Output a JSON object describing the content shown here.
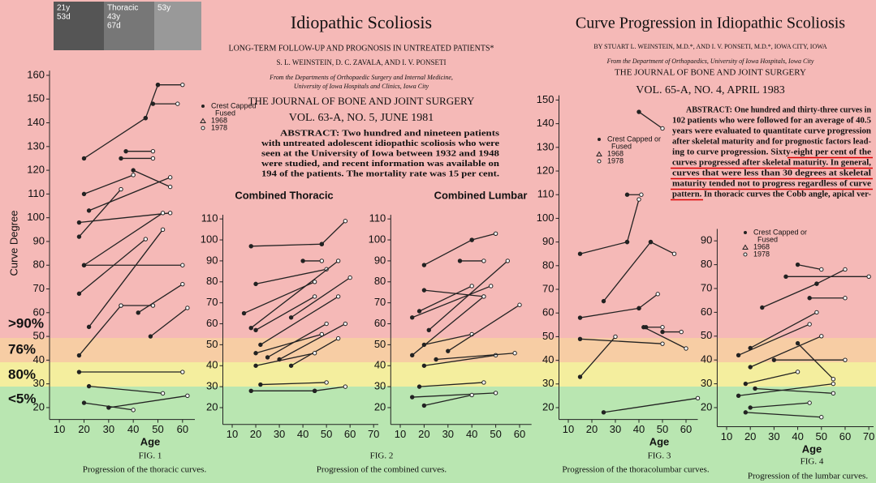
{
  "photos": [
    "21y",
    "53d",
    "Thoracic",
    "43y",
    "67d",
    "53y"
  ],
  "bands": [
    ">90%",
    "76%",
    "80%",
    "<5%"
  ],
  "article_1": {
    "title": "Idiopathic Scoliosis",
    "subtitle": "LONG-TERM FOLLOW-UP AND PROGNOSIS IN UNTREATED PATIENTS*",
    "authors": "S. L. WEINSTEIN, D. C. ZAVALA, AND I. V. PONSETI",
    "affiliation": [
      "From the Departments of Orthopaedic Surgery and Internal Medicine,",
      "University of Iowa Hospitals and Clinics, Iowa City"
    ],
    "journal": "THE JOURNAL OF BONE AND JOINT SURGERY",
    "volume": "VOL. 63-A, NO. 5, JUNE 1981",
    "abstract": [
      "ABSTRACT: Two hundred and nineteen patients",
      "with untreated adolescent idiopathic scoliosis who were",
      "seen at the University of Iowa between 1932 and 1948",
      "were studied, and recent information was available on",
      "194 of the patients. The mortality rate was 15 per cent."
    ]
  },
  "article_2": {
    "title": "Curve Progression in Idiopathic Scoliosis",
    "authors": "BY STUART L. WEINSTEIN, M.D.*, AND I. V. PONSETI, M.D.*, IOWA CITY, IOWA",
    "affiliation": "From the Department of Orthopaedics, University of Iowa Hospitals, Iowa City",
    "journal": "THE JOURNAL OF BONE AND JOINT SURGERY",
    "volume": "VOL. 65-A, NO. 4, APRIL 1983",
    "abstract": [
      "ABSTRACT: One hundred and thirty-three curves in",
      "102 patients who were followed for an average of 40.5",
      "years were evaluated to quantitate curve progression",
      "after skeletal maturity and for prognostic factors lead-",
      "ing to curve progression. Sixty-eight per cent of the",
      "curves progressed after skeletal maturity. In general,",
      "curves that were less than 30 degrees at skeletal",
      "maturity tended not to progress regardless of curve",
      "pattern. In thoracic curves the Cobb angle, apical ver-"
    ]
  },
  "chart_data": [
    {
      "type": "line",
      "ylabel": "Curve Degree",
      "xlabel": "Age",
      "figure": "FIG. 1",
      "caption": "Progression of the thoracic curves.",
      "legend": [
        "Crest Capped",
        "Fused",
        "1968",
        "1978"
      ],
      "xlim": [
        5,
        65
      ],
      "ylim": [
        15,
        162
      ],
      "xticks": [
        10,
        20,
        30,
        40,
        50,
        60
      ],
      "yticks": [
        20,
        30,
        40,
        50,
        60,
        70,
        80,
        90,
        100,
        110,
        120,
        130,
        140,
        150,
        160
      ],
      "segments": [
        {
          "x": [
            20,
            45
          ],
          "values": [
            125,
            142
          ]
        },
        {
          "x": [
            45,
            50
          ],
          "values": [
            142,
            156
          ]
        },
        {
          "x": [
            50,
            60
          ],
          "values": [
            156,
            156
          ]
        },
        {
          "x": [
            48,
            58
          ],
          "values": [
            148,
            148
          ]
        },
        {
          "x": [
            37,
            48
          ],
          "values": [
            128,
            128
          ]
        },
        {
          "x": [
            35,
            48
          ],
          "values": [
            125,
            125
          ]
        },
        {
          "x": [
            20,
            40
          ],
          "values": [
            110,
            118
          ]
        },
        {
          "x": [
            22,
            55
          ],
          "values": [
            103,
            117
          ]
        },
        {
          "x": [
            18,
            55
          ],
          "values": [
            98,
            102
          ]
        },
        {
          "x": [
            20,
            52
          ],
          "values": [
            80,
            102
          ]
        },
        {
          "x": [
            18,
            45
          ],
          "values": [
            68,
            91
          ]
        },
        {
          "x": [
            22,
            52
          ],
          "values": [
            54,
            95
          ]
        },
        {
          "x": [
            20,
            60
          ],
          "values": [
            80,
            80
          ]
        },
        {
          "x": [
            35,
            48
          ],
          "values": [
            63,
            63
          ]
        },
        {
          "x": [
            42,
            60
          ],
          "values": [
            60,
            72
          ]
        },
        {
          "x": [
            47,
            62
          ],
          "values": [
            50,
            62
          ]
        },
        {
          "x": [
            18,
            35
          ],
          "values": [
            42,
            63
          ]
        },
        {
          "x": [
            18,
            60
          ],
          "values": [
            35,
            35
          ]
        },
        {
          "x": [
            22,
            52
          ],
          "values": [
            29,
            26
          ]
        },
        {
          "x": [
            20,
            40
          ],
          "values": [
            22,
            19
          ]
        },
        {
          "x": [
            30,
            62
          ],
          "values": [
            20,
            25
          ]
        },
        {
          "x": [
            18,
            35
          ],
          "values": [
            92,
            112
          ]
        },
        {
          "x": [
            40,
            55
          ],
          "values": [
            120,
            113
          ]
        }
      ]
    },
    {
      "type": "line",
      "title": "Combined Thoracic",
      "figure": "FIG. 2",
      "caption": "Progression of the combined curves.",
      "xlim": [
        5,
        72
      ],
      "ylim": [
        12,
        112
      ],
      "xticks": [
        10,
        20,
        30,
        40,
        50,
        60,
        70
      ],
      "yticks": [
        20,
        30,
        40,
        50,
        60,
        70,
        80,
        90,
        100,
        110
      ],
      "segments": [
        {
          "x": [
            18,
            48
          ],
          "values": [
            97,
            98
          ]
        },
        {
          "x": [
            48,
            58
          ],
          "values": [
            98,
            109
          ]
        },
        {
          "x": [
            20,
            50
          ],
          "values": [
            79,
            86
          ]
        },
        {
          "x": [
            15,
            45
          ],
          "values": [
            65,
            80
          ]
        },
        {
          "x": [
            18,
            55
          ],
          "values": [
            58,
            90
          ]
        },
        {
          "x": [
            20,
            45
          ],
          "values": [
            57,
            73
          ]
        },
        {
          "x": [
            22,
            55
          ],
          "values": [
            50,
            73
          ]
        },
        {
          "x": [
            20,
            48
          ],
          "values": [
            46,
            55
          ]
        },
        {
          "x": [
            25,
            50
          ],
          "values": [
            44,
            60
          ]
        },
        {
          "x": [
            30,
            58
          ],
          "values": [
            43,
            60
          ]
        },
        {
          "x": [
            35,
            55
          ],
          "values": [
            40,
            53
          ]
        },
        {
          "x": [
            20,
            45
          ],
          "values": [
            40,
            46
          ]
        },
        {
          "x": [
            22,
            50
          ],
          "values": [
            31,
            32
          ]
        },
        {
          "x": [
            18,
            45
          ],
          "values": [
            28,
            28
          ]
        },
        {
          "x": [
            45,
            58
          ],
          "values": [
            28,
            30
          ]
        },
        {
          "x": [
            40,
            48
          ],
          "values": [
            90,
            90
          ]
        },
        {
          "x": [
            35,
            60
          ],
          "values": [
            63,
            82
          ]
        }
      ]
    },
    {
      "type": "line",
      "title": "Combined Lumbar",
      "xlim": [
        5,
        65
      ],
      "ylim": [
        12,
        112
      ],
      "xticks": [
        10,
        20,
        30,
        40,
        50,
        60
      ],
      "yticks": [
        20,
        30,
        40,
        50,
        60,
        70,
        80,
        90,
        100,
        110
      ],
      "segments": [
        {
          "x": [
            20,
            40
          ],
          "values": [
            88,
            100
          ]
        },
        {
          "x": [
            40,
            50
          ],
          "values": [
            100,
            103
          ]
        },
        {
          "x": [
            20,
            45
          ],
          "values": [
            76,
            73
          ]
        },
        {
          "x": [
            18,
            40
          ],
          "values": [
            66,
            78
          ]
        },
        {
          "x": [
            15,
            48
          ],
          "values": [
            63,
            78
          ]
        },
        {
          "x": [
            22,
            55
          ],
          "values": [
            57,
            90
          ]
        },
        {
          "x": [
            20,
            40
          ],
          "values": [
            50,
            55
          ]
        },
        {
          "x": [
            15,
            45
          ],
          "values": [
            45,
            73
          ]
        },
        {
          "x": [
            30,
            60
          ],
          "values": [
            47,
            69
          ]
        },
        {
          "x": [
            20,
            50
          ],
          "values": [
            40,
            45
          ]
        },
        {
          "x": [
            25,
            58
          ],
          "values": [
            43,
            46
          ]
        },
        {
          "x": [
            18,
            45
          ],
          "values": [
            30,
            32
          ]
        },
        {
          "x": [
            15,
            50
          ],
          "values": [
            25,
            27
          ]
        },
        {
          "x": [
            20,
            40
          ],
          "values": [
            21,
            26
          ]
        },
        {
          "x": [
            35,
            45
          ],
          "values": [
            90,
            90
          ]
        }
      ]
    },
    {
      "type": "line",
      "xlabel": "Age",
      "figure": "FIG. 3",
      "caption": "Progression of the thoracolumbar curves.",
      "legend": [
        "Crest Capped or",
        "Fused",
        "1968",
        "1978"
      ],
      "xlim": [
        5,
        65
      ],
      "ylim": [
        15,
        152
      ],
      "xticks": [
        10,
        20,
        30,
        40,
        50,
        60
      ],
      "yticks": [
        20,
        30,
        40,
        50,
        60,
        70,
        80,
        90,
        100,
        110,
        120,
        130,
        140,
        150
      ],
      "segments": [
        {
          "x": [
            15,
            35
          ],
          "values": [
            85,
            90
          ]
        },
        {
          "x": [
            35,
            40
          ],
          "values": [
            90,
            108
          ]
        },
        {
          "x": [
            35,
            41
          ],
          "values": [
            110,
            110
          ]
        },
        {
          "x": [
            40,
            50
          ],
          "values": [
            145,
            138
          ]
        },
        {
          "x": [
            15,
            40
          ],
          "values": [
            58,
            62
          ]
        },
        {
          "x": [
            40,
            48
          ],
          "values": [
            62,
            68
          ]
        },
        {
          "x": [
            25,
            45
          ],
          "values": [
            65,
            90
          ]
        },
        {
          "x": [
            45,
            55
          ],
          "values": [
            90,
            85
          ]
        },
        {
          "x": [
            15,
            50
          ],
          "values": [
            49,
            47
          ]
        },
        {
          "x": [
            43,
            50
          ],
          "values": [
            54,
            54
          ]
        },
        {
          "x": [
            42,
            60
          ],
          "values": [
            54,
            45
          ]
        },
        {
          "x": [
            15,
            30
          ],
          "values": [
            33,
            50
          ]
        },
        {
          "x": [
            25,
            65
          ],
          "values": [
            18,
            24
          ]
        },
        {
          "x": [
            50,
            58
          ],
          "values": [
            52,
            52
          ]
        }
      ]
    },
    {
      "type": "line",
      "xlabel": "Age",
      "figure": "FIG. 4",
      "caption": "Progression of the lumbar curves.",
      "legend": [
        "Crest Capped or",
        "Fused",
        "1968",
        "1978"
      ],
      "xlim": [
        5,
        72
      ],
      "ylim": [
        12,
        95
      ],
      "xticks": [
        10,
        20,
        30,
        40,
        50,
        60,
        70
      ],
      "yticks": [
        20,
        30,
        40,
        50,
        60,
        70,
        80,
        90
      ],
      "segments": [
        {
          "x": [
            25,
            48
          ],
          "values": [
            62,
            72
          ]
        },
        {
          "x": [
            48,
            60
          ],
          "values": [
            72,
            78
          ]
        },
        {
          "x": [
            40,
            50
          ],
          "values": [
            80,
            78
          ]
        },
        {
          "x": [
            35,
            70
          ],
          "values": [
            75,
            75
          ]
        },
        {
          "x": [
            20,
            48
          ],
          "values": [
            45,
            60
          ]
        },
        {
          "x": [
            15,
            45
          ],
          "values": [
            42,
            55
          ]
        },
        {
          "x": [
            20,
            50
          ],
          "values": [
            37,
            50
          ]
        },
        {
          "x": [
            18,
            40
          ],
          "values": [
            30,
            35
          ]
        },
        {
          "x": [
            15,
            55
          ],
          "values": [
            25,
            30
          ]
        },
        {
          "x": [
            20,
            45
          ],
          "values": [
            20,
            22
          ]
        },
        {
          "x": [
            18,
            50
          ],
          "values": [
            18,
            16
          ]
        },
        {
          "x": [
            40,
            55
          ],
          "values": [
            47,
            32
          ]
        },
        {
          "x": [
            30,
            60
          ],
          "values": [
            40,
            40
          ]
        },
        {
          "x": [
            22,
            55
          ],
          "values": [
            28,
            26
          ]
        },
        {
          "x": [
            45,
            60
          ],
          "values": [
            66,
            66
          ]
        }
      ]
    }
  ]
}
